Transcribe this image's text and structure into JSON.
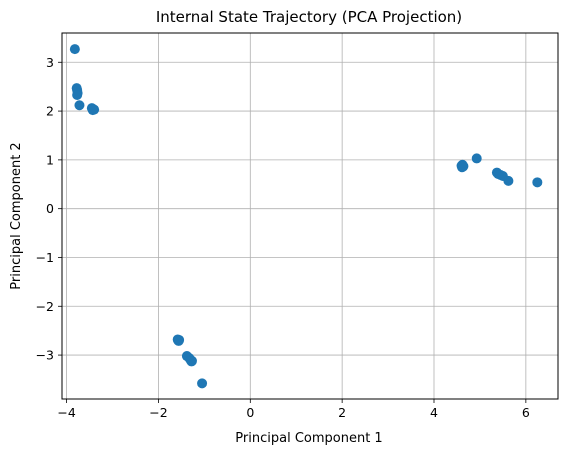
{
  "chart_data": {
    "type": "scatter",
    "title": "Internal State Trajectory (PCA Projection)",
    "xlabel": "Principal Component 1",
    "ylabel": "Principal Component 2",
    "xlim": [
      -4.1,
      6.7
    ],
    "ylim": [
      -3.9,
      3.6
    ],
    "grid": true,
    "x_ticks": [
      -4,
      -2,
      0,
      2,
      4,
      6
    ],
    "y_ticks": [
      -3,
      -2,
      -1,
      0,
      1,
      2,
      3
    ],
    "x_tick_labels": [
      "−4",
      "−2",
      "0",
      "2",
      "4",
      "6"
    ],
    "y_tick_labels": [
      "−3",
      "−2",
      "−1",
      "0",
      "1",
      "2",
      "3"
    ],
    "point_color": "#1f77b4",
    "series": [
      {
        "points": [
          [
            -3.82,
            3.27
          ],
          [
            -3.78,
            2.47
          ],
          [
            -3.77,
            2.43
          ],
          [
            -3.76,
            2.37
          ],
          [
            -3.77,
            2.33
          ],
          [
            -3.72,
            2.12
          ],
          [
            -3.45,
            2.06
          ],
          [
            -3.42,
            2.04
          ],
          [
            -3.4,
            2.03
          ],
          [
            -3.43,
            2.02
          ],
          [
            4.62,
            0.9
          ],
          [
            4.6,
            0.88
          ],
          [
            4.63,
            0.86
          ],
          [
            4.61,
            0.85
          ],
          [
            4.64,
            0.87
          ],
          [
            4.93,
            1.03
          ],
          [
            5.37,
            0.74
          ],
          [
            5.4,
            0.71
          ],
          [
            5.45,
            0.69
          ],
          [
            5.5,
            0.67
          ],
          [
            5.62,
            0.57
          ],
          [
            6.25,
            0.54
          ],
          [
            -1.58,
            -2.68
          ],
          [
            -1.55,
            -2.69
          ],
          [
            -1.57,
            -2.7
          ],
          [
            -1.56,
            -2.71
          ],
          [
            -1.38,
            -3.02
          ],
          [
            -1.33,
            -3.06
          ],
          [
            -1.3,
            -3.1
          ],
          [
            -1.27,
            -3.12
          ],
          [
            -1.28,
            -3.13
          ],
          [
            -1.05,
            -3.58
          ]
        ]
      }
    ]
  }
}
